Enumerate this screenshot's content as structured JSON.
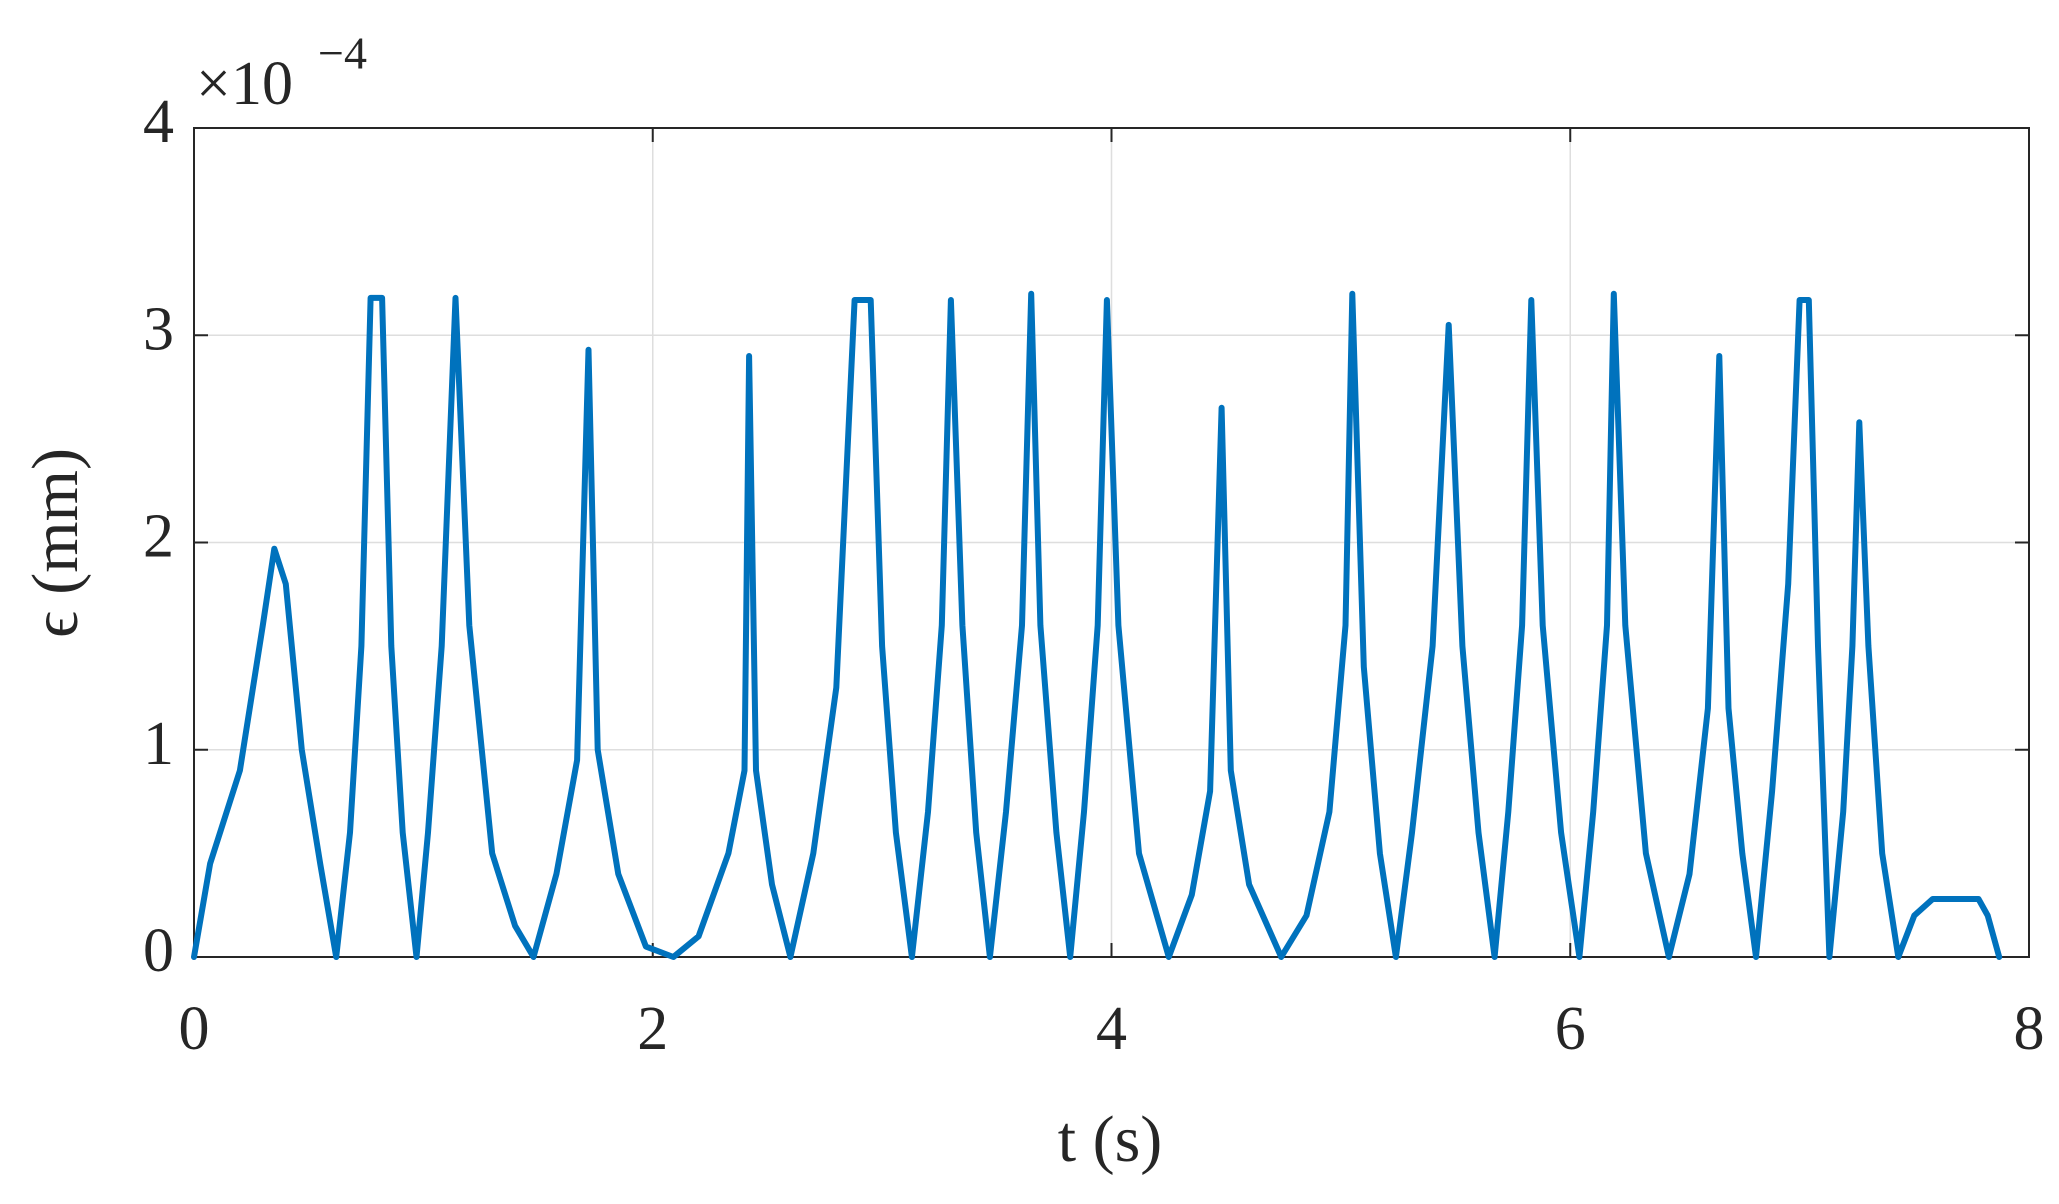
{
  "chart_data": {
    "type": "line",
    "xlabel": "t (s)",
    "ylabel": "ϵ (mm)",
    "y_scale_base": "×10",
    "y_scale_exponent": "−4",
    "x": [
      0,
      0.07,
      0.2,
      0.3,
      0.35,
      0.4,
      0.47,
      0.55,
      0.62,
      0.68,
      0.73,
      0.77,
      0.82,
      0.86,
      0.91,
      0.97,
      1.02,
      1.08,
      1.14,
      1.2,
      1.3,
      1.4,
      1.48,
      1.58,
      1.67,
      1.72,
      1.76,
      1.85,
      1.97,
      2.09,
      2.2,
      2.33,
      2.4,
      2.42,
      2.45,
      2.52,
      2.6,
      2.7,
      2.8,
      2.88,
      2.95,
      3.0,
      3.06,
      3.13,
      3.2,
      3.26,
      3.3,
      3.35,
      3.41,
      3.47,
      3.54,
      3.61,
      3.65,
      3.69,
      3.76,
      3.82,
      3.88,
      3.94,
      3.98,
      4.03,
      4.12,
      4.25,
      4.35,
      4.43,
      4.48,
      4.52,
      4.6,
      4.74,
      4.85,
      4.95,
      5.02,
      5.05,
      5.1,
      5.17,
      5.24,
      5.31,
      5.4,
      5.47,
      5.53,
      5.6,
      5.67,
      5.73,
      5.79,
      5.83,
      5.88,
      5.96,
      6.04,
      6.1,
      6.16,
      6.19,
      6.24,
      6.33,
      6.43,
      6.52,
      6.6,
      6.65,
      6.69,
      6.75,
      6.81,
      6.88,
      6.95,
      7.0,
      7.04,
      7.08,
      7.13,
      7.19,
      7.23,
      7.26,
      7.3,
      7.36,
      7.43,
      7.5,
      7.58,
      7.78,
      7.82,
      7.87
    ],
    "values": [
      0,
      0.45,
      0.9,
      1.6,
      1.97,
      1.8,
      1.0,
      0.45,
      0,
      0.6,
      1.5,
      3.18,
      3.18,
      1.5,
      0.6,
      0,
      0.6,
      1.5,
      3.18,
      1.6,
      0.5,
      0.15,
      0,
      0.4,
      0.95,
      2.93,
      1.0,
      0.4,
      0.05,
      0,
      0.1,
      0.5,
      0.9,
      2.9,
      0.9,
      0.35,
      0,
      0.5,
      1.3,
      3.17,
      3.17,
      1.5,
      0.6,
      0,
      0.7,
      1.6,
      3.17,
      1.6,
      0.6,
      0,
      0.7,
      1.6,
      3.2,
      1.6,
      0.6,
      0,
      0.7,
      1.6,
      3.17,
      1.6,
      0.5,
      0,
      0.3,
      0.8,
      2.65,
      0.9,
      0.35,
      0,
      0.2,
      0.7,
      1.6,
      3.2,
      1.4,
      0.5,
      0,
      0.6,
      1.5,
      3.05,
      1.5,
      0.6,
      0,
      0.7,
      1.6,
      3.17,
      1.6,
      0.6,
      0,
      0.7,
      1.6,
      3.2,
      1.6,
      0.5,
      0,
      0.4,
      1.2,
      2.9,
      1.2,
      0.5,
      0,
      0.8,
      1.8,
      3.17,
      3.17,
      1.5,
      0,
      0.7,
      1.5,
      2.58,
      1.5,
      0.5,
      0,
      0.2,
      0.28,
      0.28,
      0.2,
      0
    ],
    "color": "#0072bd",
    "xlim": [
      0,
      8
    ],
    "xticks": [
      0,
      2,
      4,
      6,
      8
    ],
    "ylim": [
      0,
      4
    ],
    "yticks": [
      0,
      1,
      2,
      3,
      4
    ],
    "grid": true
  }
}
